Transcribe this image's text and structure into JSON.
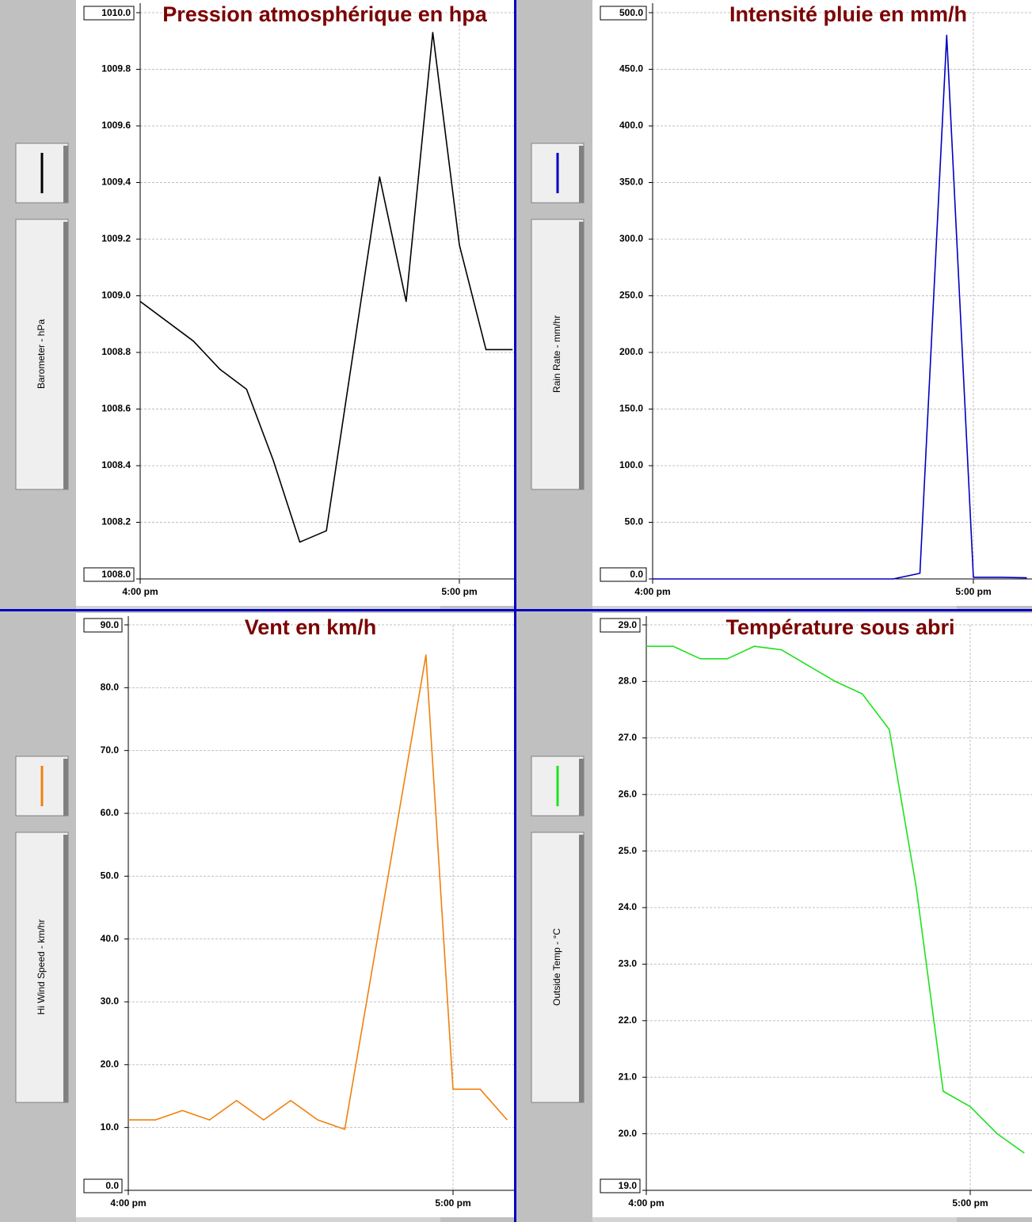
{
  "chart_data": [
    {
      "type": "line",
      "title": "Pression atmosphérique en hpa",
      "x": [
        "4:00 pm",
        "4:10 pm",
        "4:15 pm",
        "4:20 pm",
        "4:25 pm",
        "4:30 pm",
        "4:35 pm",
        "4:45 pm",
        "4:50 pm",
        "4:55 pm",
        "5:00 pm",
        "5:05 pm",
        "5:10 pm"
      ],
      "series": [
        {
          "name": "Barometer - hPa",
          "color": "#000000",
          "values": [
            1008.98,
            1008.84,
            1008.74,
            1008.67,
            1008.42,
            1008.13,
            1008.17,
            1009.42,
            1008.98,
            1009.93,
            1009.18,
            1008.81,
            1008.81
          ]
        }
      ],
      "xlim": [
        "4:00 pm",
        "5:10 pm"
      ],
      "xticks": [
        "4:00 pm",
        "5:00 pm"
      ],
      "ylim": [
        1008.0,
        1010.0
      ],
      "yticks": [
        {
          "value": 1008.0,
          "label": "1008.0"
        },
        1008.2,
        1008.4,
        1008.6,
        1008.8,
        {
          "value": 1009.0,
          "label": "1009.0"
        },
        1009.2,
        1009.4,
        1009.6,
        1009.8,
        {
          "value": 1010.0,
          "label": "1010.0"
        }
      ],
      "grid": true
    },
    {
      "type": "line",
      "title": "Intensité pluie en mm/h",
      "x": [
        "4:00 pm",
        "4:05 pm",
        "4:10 pm",
        "4:15 pm",
        "4:20 pm",
        "4:25 pm",
        "4:30 pm",
        "4:35 pm",
        "4:40 pm",
        "4:45 pm",
        "4:50 pm",
        "4:55 pm",
        "5:00 pm",
        "5:05 pm",
        "5:10 pm"
      ],
      "series": [
        {
          "name": "Rain Rate - mm/hr",
          "color": "#0000c0",
          "values": [
            0,
            0,
            0,
            0,
            0,
            0,
            0,
            0,
            0,
            0,
            5,
            480,
            1.5,
            1.5,
            1
          ]
        }
      ],
      "xlim": [
        "4:00 pm",
        "5:10 pm"
      ],
      "xticks": [
        "4:00 pm",
        "5:00 pm"
      ],
      "ylim": [
        0,
        500
      ],
      "yticks": [
        {
          "value": 0,
          "label": "0.0"
        },
        {
          "value": 50,
          "label": "50.0"
        },
        {
          "value": 100,
          "label": "100.0"
        },
        {
          "value": 150,
          "label": "150.0"
        },
        {
          "value": 200,
          "label": "200.0"
        },
        {
          "value": 250,
          "label": "250.0"
        },
        {
          "value": 300,
          "label": "300.0"
        },
        {
          "value": 350,
          "label": "350.0"
        },
        {
          "value": 400,
          "label": "400.0"
        },
        {
          "value": 450,
          "label": "450.0"
        },
        {
          "value": 500,
          "label": "500.0"
        }
      ],
      "grid": true
    },
    {
      "type": "line",
      "title": "Vent en km/h",
      "x": [
        "4:00 pm",
        "4:05 pm",
        "4:10 pm",
        "4:15 pm",
        "4:20 pm",
        "4:25 pm",
        "4:30 pm",
        "4:35 pm",
        "4:40 pm",
        "4:55 pm",
        "5:00 pm",
        "5:05 pm",
        "5:10 pm"
      ],
      "series": [
        {
          "name": "Hi Wind Speed - km/hr",
          "color": "#f0800c",
          "values": [
            11.2,
            11.2,
            12.7,
            11.2,
            14.3,
            11.2,
            14.3,
            11.2,
            9.7,
            85.2,
            16.1,
            16.1,
            11.2
          ]
        }
      ],
      "xlim": [
        "4:00 pm",
        "5:10 pm"
      ],
      "xticks": [
        "4:00 pm",
        "5:00 pm"
      ],
      "ylim": [
        0,
        90
      ],
      "yticks": [
        {
          "value": 0,
          "label": "0.0"
        },
        {
          "value": 10,
          "label": "10.0"
        },
        {
          "value": 20,
          "label": "20.0"
        },
        {
          "value": 30,
          "label": "30.0"
        },
        {
          "value": 40,
          "label": "40.0"
        },
        {
          "value": 50,
          "label": "50.0"
        },
        {
          "value": 60,
          "label": "60.0"
        },
        {
          "value": 70,
          "label": "70.0"
        },
        {
          "value": 80,
          "label": "80.0"
        },
        {
          "value": 90,
          "label": "90.0"
        }
      ],
      "grid": true
    },
    {
      "type": "line",
      "title": "Température sous abri",
      "x": [
        "4:00 pm",
        "4:05 pm",
        "4:10 pm",
        "4:15 pm",
        "4:20 pm",
        "4:25 pm",
        "4:30 pm",
        "4:35 pm",
        "4:40 pm",
        "4:45 pm",
        "4:50 pm",
        "4:55 pm",
        "5:00 pm",
        "5:05 pm",
        "5:10 pm"
      ],
      "series": [
        {
          "name": "Outside Temp - °C",
          "color": "#20e020",
          "values": [
            28.62,
            28.62,
            28.4,
            28.4,
            28.62,
            28.56,
            28.28,
            28.0,
            27.78,
            27.15,
            24.36,
            20.75,
            20.48,
            20.0,
            19.66
          ]
        }
      ],
      "xlim": [
        "4:00 pm",
        "5:10 pm"
      ],
      "xticks": [
        "4:00 pm",
        "5:00 pm"
      ],
      "ylim": [
        19,
        29
      ],
      "yticks": [
        {
          "value": 19,
          "label": "19.0"
        },
        {
          "value": 20,
          "label": "20.0"
        },
        {
          "value": 21,
          "label": "21.0"
        },
        {
          "value": 22,
          "label": "22.0"
        },
        {
          "value": 23,
          "label": "23.0"
        },
        {
          "value": 24,
          "label": "24.0"
        },
        {
          "value": 25,
          "label": "25.0"
        },
        {
          "value": 26,
          "label": "26.0"
        },
        {
          "value": 27,
          "label": "27.0"
        },
        {
          "value": 28,
          "label": "28.0"
        },
        {
          "value": 29,
          "label": "29.0"
        }
      ],
      "grid": true
    }
  ]
}
